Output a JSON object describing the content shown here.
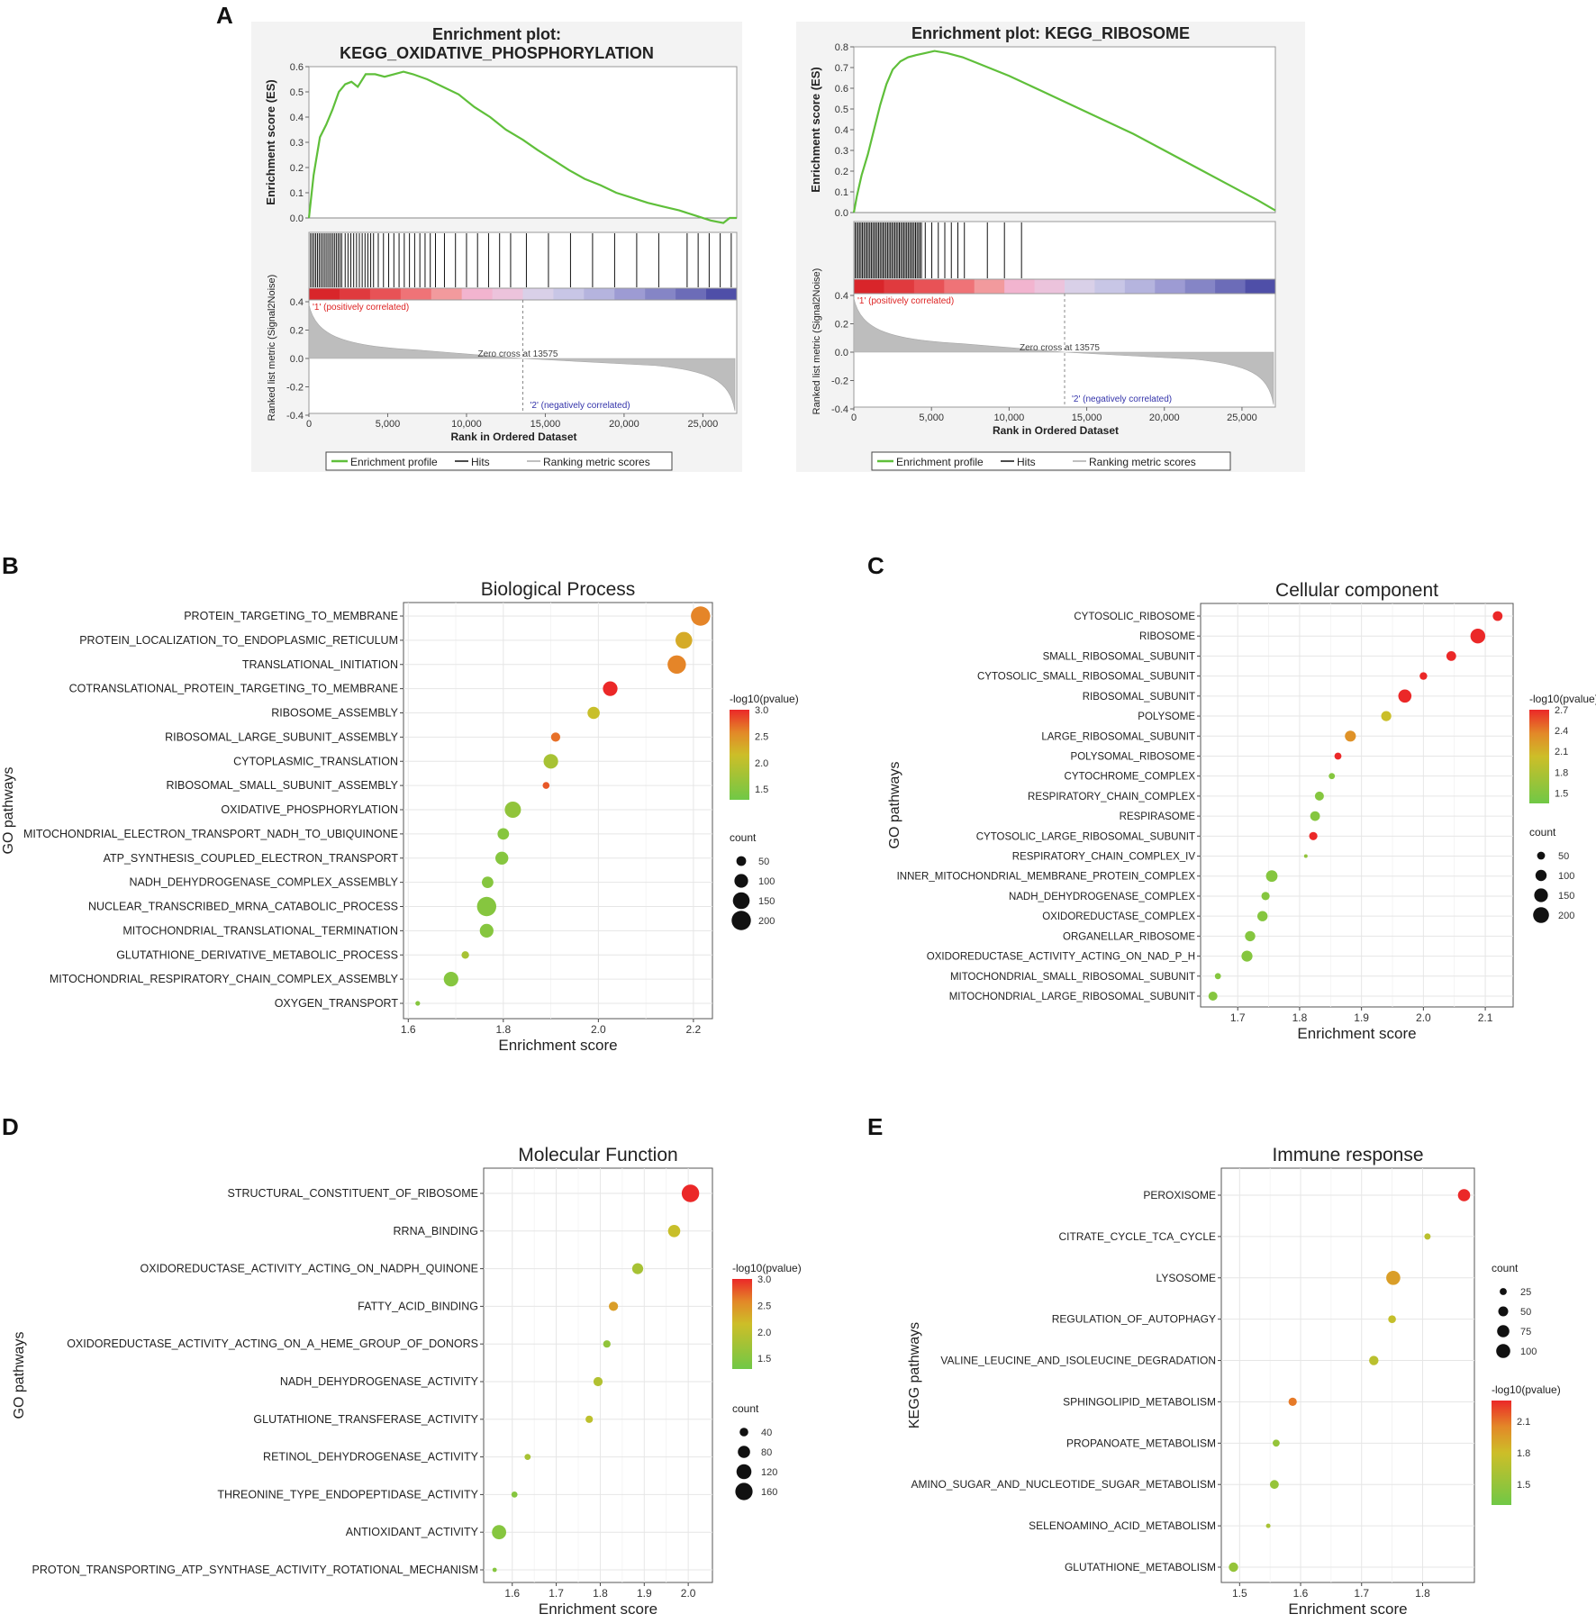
{
  "panel_labels": [
    "A",
    "B",
    "C",
    "D",
    "E"
  ],
  "chart_data": [
    {
      "id": "gsea1",
      "type": "line",
      "title": "Enrichment plot:",
      "title2": "KEGG_OXIDATIVE_PHOSPHORYLATION",
      "ylabel": "Enrichment score (ES)",
      "ylabel2": "Ranked list metric (Signal2Noise)",
      "xlabel": "Rank in Ordered Dataset",
      "ylim": [
        0,
        0.6
      ],
      "yticks": [
        "0.0",
        "0.1",
        "0.2",
        "0.3",
        "0.4",
        "0.5",
        "0.6"
      ],
      "xlim": [
        0,
        27150
      ],
      "xticks": [
        "0",
        "5,000",
        "10,000",
        "15,000",
        "20,000",
        "25,000"
      ],
      "metric_yticks": [
        "0.4",
        "0.2",
        "0.0",
        "-0.2",
        "-0.4"
      ],
      "x": [
        0,
        300,
        700,
        1100,
        1500,
        1900,
        2300,
        2700,
        3100,
        3600,
        4200,
        4800,
        5400,
        6000,
        6600,
        7500,
        8500,
        9500,
        10500,
        11500,
        12500,
        13575,
        14500,
        15500,
        16500,
        17500,
        18500,
        19500,
        20500,
        21500,
        22500,
        23500,
        24500,
        25500,
        26300,
        26700,
        27150
      ],
      "es": [
        0,
        0.17,
        0.32,
        0.37,
        0.43,
        0.5,
        0.53,
        0.54,
        0.52,
        0.57,
        0.57,
        0.56,
        0.57,
        0.58,
        0.57,
        0.55,
        0.52,
        0.49,
        0.44,
        0.4,
        0.35,
        0.31,
        0.27,
        0.23,
        0.19,
        0.155,
        0.13,
        0.1,
        0.08,
        0.06,
        0.045,
        0.03,
        0.01,
        -0.01,
        -0.02,
        0.0,
        0.0
      ],
      "pos_label": "'1' (positively correlated)",
      "neg_label": "'2' (negatively correlated)",
      "zero_cross": "Zero cross at 13575",
      "legend": [
        "Enrichment profile",
        "Hits",
        "Ranking metric scores"
      ]
    },
    {
      "id": "gsea2",
      "type": "line",
      "title": "Enrichment plot: KEGG_RIBOSOME",
      "ylabel": "Enrichment score (ES)",
      "ylabel2": "Ranked list metric (Signal2Noise)",
      "xlabel": "Rank in Ordered Dataset",
      "ylim": [
        0,
        0.8
      ],
      "yticks": [
        "0.0",
        "0.1",
        "0.2",
        "0.3",
        "0.4",
        "0.5",
        "0.6",
        "0.7",
        "0.8"
      ],
      "xlim": [
        0,
        27150
      ],
      "xticks": [
        "0",
        "5,000",
        "10,000",
        "15,000",
        "20,000",
        "25,000"
      ],
      "metric_yticks": [
        "0.4",
        "0.2",
        "0.0",
        "-0.2",
        "-0.4"
      ],
      "x": [
        0,
        200,
        500,
        900,
        1300,
        1700,
        2100,
        2500,
        3000,
        3500,
        4000,
        4600,
        5200,
        6000,
        7000,
        8000,
        10000,
        12000,
        14000,
        16000,
        18000,
        20000,
        22000,
        24000,
        26000,
        27150
      ],
      "es": [
        0,
        0.08,
        0.18,
        0.28,
        0.4,
        0.52,
        0.62,
        0.69,
        0.73,
        0.75,
        0.76,
        0.77,
        0.78,
        0.77,
        0.75,
        0.72,
        0.66,
        0.59,
        0.52,
        0.45,
        0.38,
        0.3,
        0.22,
        0.14,
        0.06,
        0.01
      ],
      "pos_label": "'1' (positively correlated)",
      "neg_label": "'2' (negatively correlated)",
      "zero_cross": "Zero cross at 13575",
      "legend": [
        "Enrichment profile",
        "Hits",
        "Ranking metric scores"
      ]
    },
    {
      "id": "bp",
      "type": "scatter",
      "title": "Biological Process",
      "xlabel": "Enrichment score",
      "ylabel": "GO pathways",
      "xlim": [
        1.59,
        2.24
      ],
      "xticks": [
        1.6,
        1.8,
        2.0,
        2.2
      ],
      "color_title": "-log10(pvalue)",
      "color_range": [
        1.3,
        3.0
      ],
      "color_ticks": [
        3.0,
        2.5,
        2.0,
        1.5
      ],
      "size_title": "count",
      "size_range": [
        10,
        210
      ],
      "size_ticks": [
        50,
        100,
        150,
        200
      ],
      "categories": [
        "PROTEIN_TARGETING_TO_MEMBRANE",
        "PROTEIN_LOCALIZATION_TO_ENDOPLASMIC_RETICULUM",
        "TRANSLATIONAL_INITIATION",
        "COTRANSLATIONAL_PROTEIN_TARGETING_TO_MEMBRANE",
        "RIBOSOME_ASSEMBLY",
        "RIBOSOMAL_LARGE_SUBUNIT_ASSEMBLY",
        "CYTOPLASMIC_TRANSLATION",
        "RIBOSOMAL_SMALL_SUBUNIT_ASSEMBLY",
        "OXIDATIVE_PHOSPHORYLATION",
        "MITOCHONDRIAL_ELECTRON_TRANSPORT_NADH_TO_UBIQUINONE",
        "ATP_SYNTHESIS_COUPLED_ELECTRON_TRANSPORT",
        "NADH_DEHYDROGENASE_COMPLEX_ASSEMBLY",
        "NUCLEAR_TRANSCRIBED_MRNA_CATABOLIC_PROCESS",
        "MITOCHONDRIAL_TRANSLATIONAL_TERMINATION",
        "GLUTATHIONE_DERIVATIVE_METABOLIC_PROCESS",
        "MITOCHONDRIAL_RESPIRATORY_CHAIN_COMPLEX_ASSEMBLY",
        "OXYGEN_TRANSPORT"
      ],
      "values": [
        2.215,
        2.18,
        2.165,
        2.025,
        1.99,
        1.91,
        1.9,
        1.89,
        1.82,
        1.8,
        1.797,
        1.767,
        1.765,
        1.765,
        1.72,
        1.69,
        1.62
      ],
      "pvalue": [
        2.6,
        2.3,
        2.6,
        3.0,
        2.1,
        2.7,
        1.8,
        2.8,
        1.6,
        1.5,
        1.5,
        1.5,
        1.5,
        1.5,
        1.8,
        1.5,
        1.5
      ],
      "count": [
        200,
        150,
        180,
        115,
        80,
        45,
        115,
        25,
        140,
        70,
        90,
        70,
        200,
        100,
        30,
        115,
        12
      ]
    },
    {
      "id": "cc",
      "type": "scatter",
      "title": "Cellular component",
      "xlabel": "Enrichment score",
      "ylabel": "GO pathways",
      "xlim": [
        1.64,
        2.145
      ],
      "xticks": [
        1.7,
        1.8,
        1.9,
        2.0,
        2.1
      ],
      "color_title": "-log10(pvalue)",
      "color_range": [
        1.35,
        2.7
      ],
      "color_ticks": [
        2.7,
        2.4,
        2.1,
        1.8,
        1.5
      ],
      "size_title": "count",
      "size_range": [
        10,
        210
      ],
      "size_ticks": [
        50,
        100,
        150,
        200
      ],
      "categories": [
        "CYTOSOLIC_RIBOSOME",
        "RIBOSOME",
        "SMALL_RIBOSOMAL_SUBUNIT",
        "CYTOSOLIC_SMALL_RIBOSOMAL_SUBUNIT",
        "RIBOSOMAL_SUBUNIT",
        "POLYSOME",
        "LARGE_RIBOSOMAL_SUBUNIT",
        "POLYSOMAL_RIBOSOME",
        "CYTOCHROME_COMPLEX",
        "RESPIRATORY_CHAIN_COMPLEX",
        "RESPIRASOME",
        "CYTOSOLIC_LARGE_RIBOSOMAL_SUBUNIT",
        "RESPIRATORY_CHAIN_COMPLEX_IV",
        "INNER_MITOCHONDRIAL_MEMBRANE_PROTEIN_COMPLEX",
        "NADH_DEHYDROGENASE_COMPLEX",
        "OXIDOREDUCTASE_COMPLEX",
        "ORGANELLAR_RIBOSOME",
        "OXIDOREDUCTASE_ACTIVITY_ACTING_ON_NAD_P_H",
        "MITOCHONDRIAL_SMALL_RIBOSOMAL_SUBUNIT",
        "MITOCHONDRIAL_LARGE_RIBOSOMAL_SUBUNIT"
      ],
      "values": [
        2.12,
        2.088,
        2.045,
        2.0,
        1.97,
        1.94,
        1.882,
        1.862,
        1.852,
        1.832,
        1.825,
        1.822,
        1.81,
        1.755,
        1.745,
        1.74,
        1.72,
        1.715,
        1.668,
        1.66
      ],
      "pvalue": [
        2.7,
        2.7,
        2.7,
        2.7,
        2.7,
        2.0,
        2.3,
        2.7,
        1.5,
        1.5,
        1.5,
        2.7,
        1.6,
        1.5,
        1.5,
        1.5,
        1.5,
        1.5,
        1.5,
        1.5
      ],
      "count": [
        75,
        175,
        75,
        45,
        140,
        80,
        95,
        40,
        30,
        65,
        75,
        55,
        10,
        105,
        55,
        85,
        85,
        95,
        30,
        65
      ]
    },
    {
      "id": "mf",
      "type": "scatter",
      "title": "Molecular Function",
      "xlabel": "Enrichment score",
      "ylabel": "GO pathways",
      "xlim": [
        1.535,
        2.055
      ],
      "xticks": [
        1.6,
        1.7,
        1.8,
        1.9,
        2.0
      ],
      "color_title": "-log10(pvalue)",
      "color_range": [
        1.3,
        3.0
      ],
      "color_ticks": [
        3.0,
        2.5,
        2.0,
        1.5
      ],
      "size_title": "count",
      "size_range": [
        5,
        175
      ],
      "size_ticks": [
        40,
        80,
        120,
        160
      ],
      "categories": [
        "STRUCTURAL_CONSTITUENT_OF_RIBOSOME",
        "RRNA_BINDING",
        "OXIDOREDUCTASE_ACTIVITY_ACTING_ON_NADPH_QUINONE",
        "FATTY_ACID_BINDING",
        "OXIDOREDUCTASE_ACTIVITY_ACTING_ON_A_HEME_GROUP_OF_DONORS",
        "NADH_DEHYDROGENASE_ACTIVITY",
        "GLUTATHIONE_TRANSFERASE_ACTIVITY",
        "RETINOL_DEHYDROGENASE_ACTIVITY",
        "THREONINE_TYPE_ENDOPEPTIDASE_ACTIVITY",
        "ANTIOXIDANT_ACTIVITY",
        "PROTON_TRANSPORTING_ATP_SYNTHASE_ACTIVITY_ROTATIONAL_MECHANISM"
      ],
      "values": [
        2.005,
        1.968,
        1.885,
        1.83,
        1.815,
        1.795,
        1.775,
        1.635,
        1.605,
        1.57,
        1.56
      ],
      "pvalue": [
        3.0,
        2.1,
        1.8,
        2.4,
        1.6,
        1.9,
        2.0,
        1.8,
        1.5,
        1.5,
        1.5
      ],
      "count": [
        165,
        80,
        65,
        45,
        30,
        45,
        30,
        20,
        20,
        110,
        10
      ]
    },
    {
      "id": "kegg",
      "type": "scatter",
      "title": "Immune response",
      "xlabel": "Enrichment score",
      "ylabel": "KEGG pathways",
      "xlim": [
        1.47,
        1.885
      ],
      "xticks": [
        1.5,
        1.6,
        1.7,
        1.8
      ],
      "color_title": "-log10(pvalue)",
      "color_range": [
        1.3,
        2.3
      ],
      "color_ticks": [
        2.1,
        1.8,
        1.5
      ],
      "size_title": "count",
      "size_range": [
        5,
        105
      ],
      "size_ticks": [
        25,
        50,
        75,
        100
      ],
      "categories": [
        "PEROXISOME",
        "CITRATE_CYCLE_TCA_CYCLE",
        "LYSOSOME",
        "REGULATION_OF_AUTOPHAGY",
        "VALINE_LEUCINE_AND_ISOLEUCINE_DEGRADATION",
        "SPHINGOLIPID_METABOLISM",
        "PROPANOATE_METABOLISM",
        "AMINO_SUGAR_AND_NUCLEOTIDE_SUGAR_METABOLISM",
        "SELENOAMINO_ACID_METABOLISM",
        "GLUTATHIONE_METABOLISM"
      ],
      "values": [
        1.868,
        1.808,
        1.752,
        1.75,
        1.72,
        1.587,
        1.56,
        1.557,
        1.547,
        1.49
      ],
      "pvalue": [
        2.3,
        1.7,
        1.95,
        1.75,
        1.7,
        2.1,
        1.5,
        1.5,
        1.6,
        1.5
      ],
      "count": [
        75,
        20,
        100,
        30,
        45,
        35,
        25,
        40,
        10,
        45
      ]
    }
  ]
}
